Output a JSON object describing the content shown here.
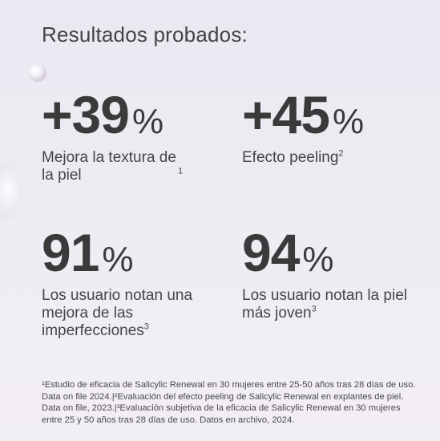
{
  "heading": "Resultados probados:",
  "stats": [
    {
      "value": "+39",
      "unit": "%",
      "description": "Mejora la textura de la piel",
      "ref": "1"
    },
    {
      "value": "+45",
      "unit": "%",
      "description": "Efecto peeling",
      "ref": "2"
    },
    {
      "value": "91",
      "unit": "%",
      "description": "Los usuario notan una  mejora de las imperfecciones",
      "ref": "3"
    },
    {
      "value": "94",
      "unit": "%",
      "description": "Los usuario notan la piel más joven",
      "ref": "3"
    }
  ],
  "footnote": "¹Estudio de eficacia de Salicylic Renewal en 30 mujeres entre 25-50 años tras 28 días de uso. Data on file 2024.|²Evaluación del efecto peeling de Salicylic Renewal en explantes de piel. Data on file, 2023.|³Evaluación subjetiva de la eficacia de Salicylic Renewal en 30 mujeres entre 25 y 50 años tras 28 días de uso. Datos en archivo, 2024."
}
